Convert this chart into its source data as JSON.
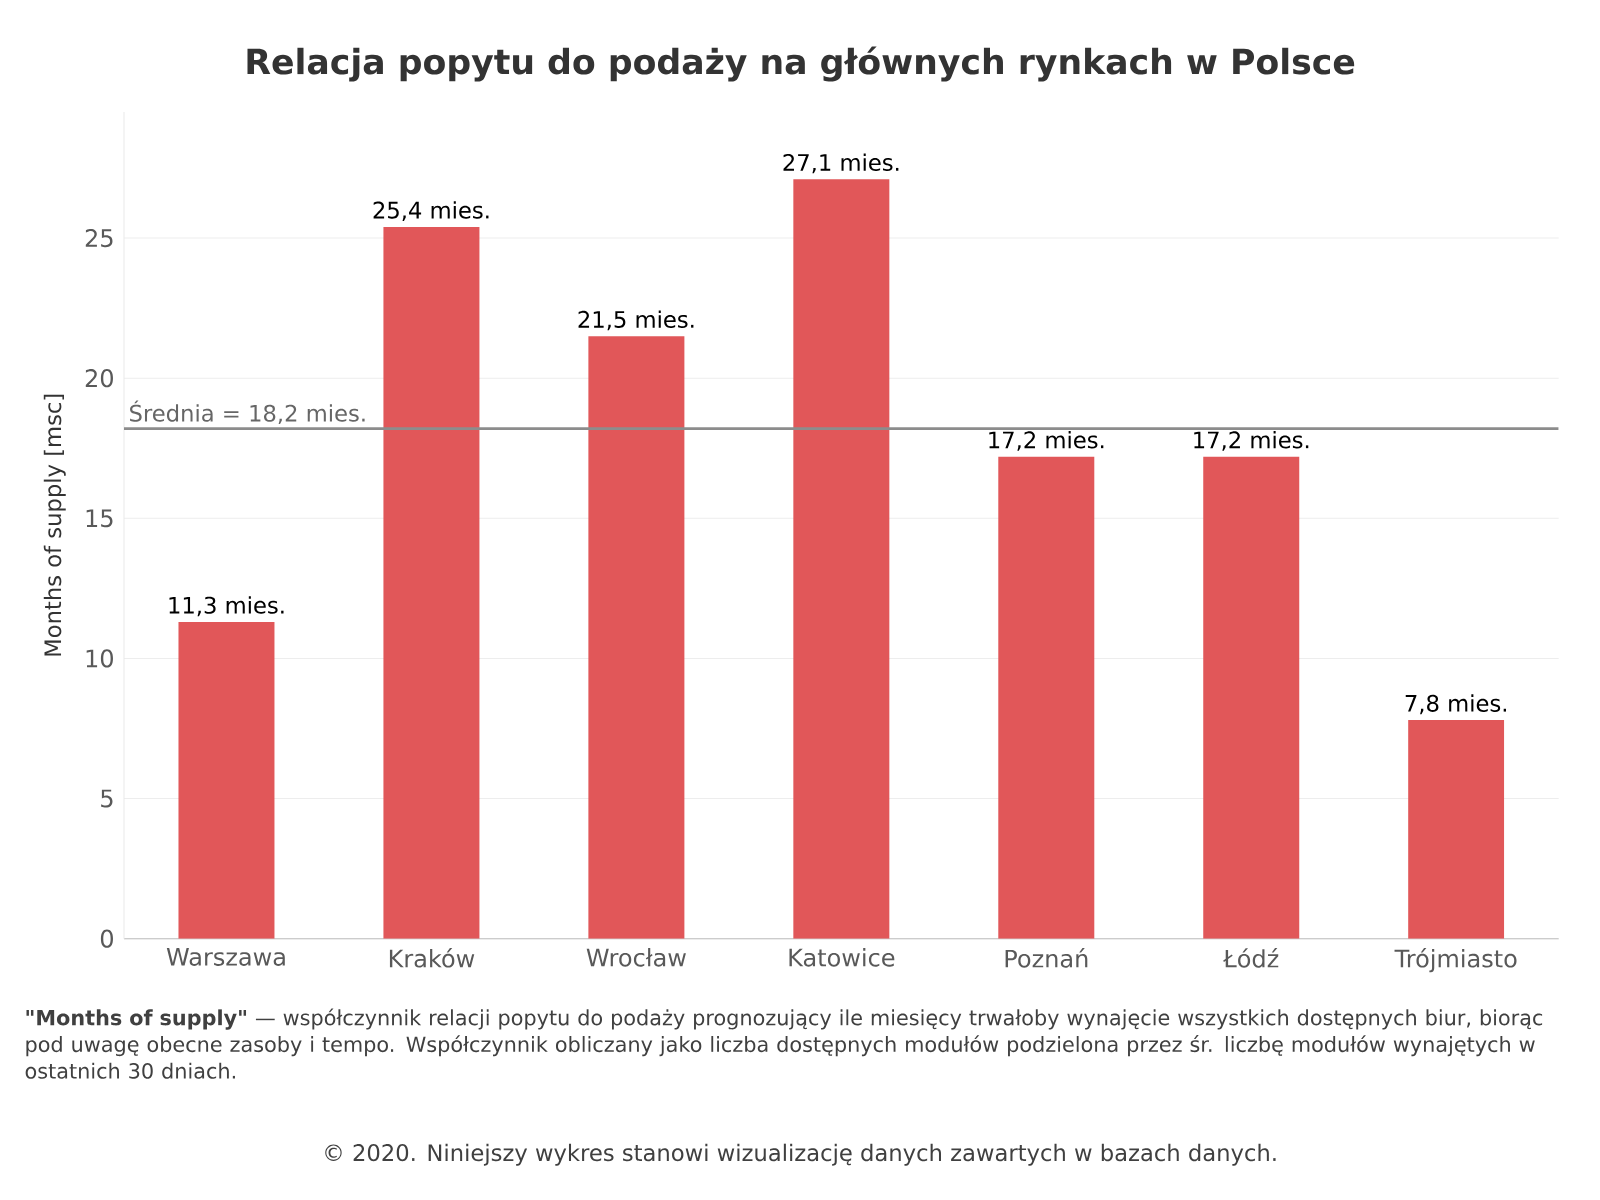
{
  "chart_data": {
    "type": "bar",
    "title": "Relacja popytu do podaży na głównych rynkach w Polsce",
    "ylabel": "Months of supply [msc]",
    "categories": [
      "Warszawa",
      "Kraków",
      "Wrocław",
      "Katowice",
      "Poznań",
      "Łódź",
      "Trójmiasto"
    ],
    "values": [
      11.3,
      25.4,
      21.5,
      27.1,
      17.2,
      17.2,
      7.8
    ],
    "value_labels": [
      "11,3 mies.",
      "25,4 mies.",
      "21,5 mies.",
      "27,1 mies.",
      "17,2 mies.",
      "17,2 mies.",
      "7,8 mies."
    ],
    "color": "#e15759",
    "ylim": [
      0,
      29.5
    ],
    "yticks": [
      0,
      5,
      10,
      15,
      20,
      25
    ],
    "grid": "y",
    "ref_lines": [
      {
        "axis": "y",
        "value": 18.2,
        "label": "Średnia = 18,2 mies.",
        "color": "#8c8c8c"
      }
    ],
    "annotations": [
      "**\"Months of supply\"** — współczynnik relacji popytu do podaży prognozujący ile miesięcy trwałoby wynajęcie wszystkich dostępnych biur, biorąc pod uwagę obecne zasoby i tempo. Współczynnik obliczany jako liczba dostępnych modułów podzielona przez śr. liczbę modułów wynajętych w ostatnich 30 dniach.",
      "© 2020. Niniejszy wykres stanowi wizualizację danych zawartych w bazach danych."
    ]
  }
}
